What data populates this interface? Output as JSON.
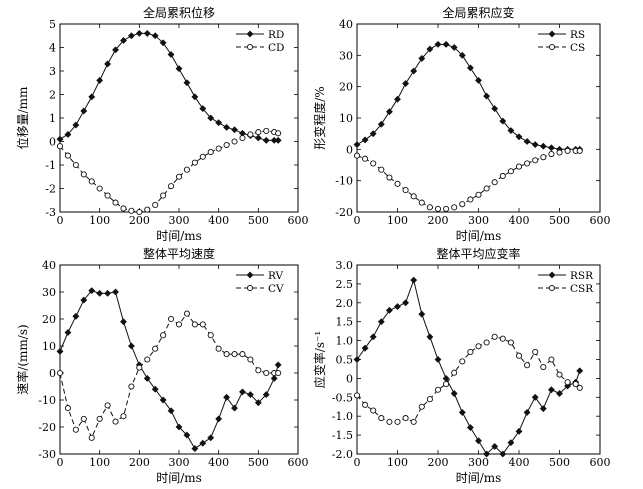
{
  "chart_data": [
    {
      "type": "line",
      "title": "全局累积位移",
      "xlabel": "时间/ms",
      "ylabel": "位移量/mm",
      "xlim": [
        0,
        600
      ],
      "ylim": [
        -3,
        5
      ],
      "xticks": [
        0,
        100,
        200,
        300,
        400,
        500,
        600
      ],
      "yticks": [
        -3,
        -2,
        -1,
        0,
        1,
        2,
        3,
        4,
        5
      ],
      "xtick_labels": [
        "0",
        "100",
        "200",
        "300",
        "400",
        "500",
        "600"
      ],
      "ytick_labels": [
        "-3",
        "-2",
        "-1",
        "0",
        "1",
        "2",
        "3",
        "4",
        "5"
      ],
      "grid": false,
      "legend": "top-right",
      "series": [
        {
          "name": "RD",
          "marker": "filled-diamond",
          "line": "solid",
          "x": [
            0,
            20,
            40,
            60,
            80,
            100,
            120,
            140,
            160,
            180,
            200,
            220,
            240,
            260,
            280,
            300,
            320,
            340,
            360,
            380,
            400,
            420,
            440,
            460,
            480,
            500,
            520,
            540,
            550
          ],
          "y": [
            0.1,
            0.3,
            0.7,
            1.3,
            1.9,
            2.6,
            3.3,
            3.9,
            4.3,
            4.5,
            4.6,
            4.6,
            4.5,
            4.2,
            3.7,
            3.1,
            2.5,
            1.9,
            1.4,
            1.0,
            0.8,
            0.6,
            0.5,
            0.35,
            0.25,
            0.15,
            0.05,
            0.05,
            0.05
          ]
        },
        {
          "name": "CD",
          "marker": "open-circle",
          "line": "dashed",
          "x": [
            0,
            20,
            40,
            60,
            80,
            100,
            120,
            140,
            160,
            180,
            200,
            220,
            240,
            260,
            280,
            300,
            320,
            340,
            360,
            380,
            400,
            420,
            440,
            460,
            480,
            500,
            520,
            540,
            550
          ],
          "y": [
            -0.2,
            -0.6,
            -1.0,
            -1.4,
            -1.7,
            -2.0,
            -2.3,
            -2.6,
            -2.85,
            -2.95,
            -3.0,
            -2.9,
            -2.7,
            -2.3,
            -1.9,
            -1.5,
            -1.2,
            -0.9,
            -0.65,
            -0.45,
            -0.3,
            -0.15,
            0.0,
            0.15,
            0.3,
            0.4,
            0.45,
            0.4,
            0.35
          ]
        }
      ]
    },
    {
      "type": "line",
      "title": "全局累积应变",
      "xlabel": "时间/ms",
      "ylabel": "形变程度/%",
      "xlim": [
        0,
        600
      ],
      "ylim": [
        -20,
        40
      ],
      "xticks": [
        0,
        100,
        200,
        300,
        400,
        500,
        600
      ],
      "yticks": [
        -20,
        -10,
        0,
        10,
        20,
        30,
        40
      ],
      "xtick_labels": [
        "0",
        "100",
        "200",
        "300",
        "400",
        "500",
        "600"
      ],
      "ytick_labels": [
        "-20",
        "-10",
        "0",
        "10",
        "20",
        "30",
        "40"
      ],
      "grid": false,
      "legend": "top-right",
      "series": [
        {
          "name": "RS",
          "marker": "filled-diamond",
          "line": "solid",
          "x": [
            0,
            20,
            40,
            60,
            80,
            100,
            120,
            140,
            160,
            180,
            200,
            220,
            240,
            260,
            280,
            300,
            320,
            340,
            360,
            380,
            400,
            420,
            440,
            460,
            480,
            500,
            520,
            540,
            550
          ],
          "y": [
            1.5,
            3,
            5,
            8,
            12,
            16,
            21,
            25,
            29,
            32,
            33.5,
            33.5,
            32.5,
            30,
            26,
            22,
            17,
            13,
            9,
            6,
            4,
            2.5,
            1.5,
            1,
            0.5,
            0,
            0,
            0,
            0
          ]
        },
        {
          "name": "CS",
          "marker": "open-circle",
          "line": "dashed",
          "x": [
            0,
            20,
            40,
            60,
            80,
            100,
            120,
            140,
            160,
            180,
            200,
            220,
            240,
            260,
            280,
            300,
            320,
            340,
            360,
            380,
            400,
            420,
            440,
            460,
            480,
            500,
            520,
            540,
            550
          ],
          "y": [
            -2,
            -3,
            -4.5,
            -6.5,
            -9,
            -11,
            -13,
            -15,
            -17,
            -18.5,
            -19,
            -19,
            -18.5,
            -17.5,
            -16,
            -14.5,
            -12.5,
            -10.5,
            -8.5,
            -7,
            -5.5,
            -4.5,
            -3.5,
            -2.5,
            -1.5,
            -1,
            -0.5,
            -0.5,
            -0.5
          ]
        }
      ]
    },
    {
      "type": "line",
      "title": "整体平均速度",
      "xlabel": "时间/ms",
      "ylabel": "速率/(mm/s)",
      "xlim": [
        0,
        600
      ],
      "ylim": [
        -30,
        40
      ],
      "xticks": [
        0,
        100,
        200,
        300,
        400,
        500,
        600
      ],
      "yticks": [
        -30,
        -20,
        -10,
        0,
        10,
        20,
        30,
        40
      ],
      "xtick_labels": [
        "0",
        "100",
        "200",
        "300",
        "400",
        "500",
        "600"
      ],
      "ytick_labels": [
        "-30",
        "-20",
        "-10",
        "0",
        "10",
        "20",
        "30",
        "40"
      ],
      "grid": false,
      "legend": "top-right",
      "series": [
        {
          "name": "RV",
          "marker": "filled-diamond",
          "line": "solid",
          "x": [
            0,
            20,
            40,
            60,
            80,
            100,
            120,
            140,
            160,
            180,
            200,
            220,
            240,
            260,
            280,
            300,
            320,
            340,
            360,
            380,
            400,
            420,
            440,
            460,
            480,
            500,
            520,
            540,
            550
          ],
          "y": [
            8,
            15,
            21,
            27,
            30.5,
            29.5,
            29.5,
            30,
            19,
            10,
            3,
            -2,
            -6,
            -10,
            -14,
            -20,
            -23,
            -28,
            -26,
            -24,
            -17,
            -9,
            -13,
            -7,
            -8,
            -11,
            -8,
            -2,
            3
          ]
        },
        {
          "name": "CV",
          "marker": "open-circle",
          "line": "dashed",
          "x": [
            0,
            20,
            40,
            60,
            80,
            100,
            120,
            140,
            160,
            180,
            200,
            220,
            240,
            260,
            280,
            300,
            320,
            340,
            360,
            380,
            400,
            420,
            440,
            460,
            480,
            500,
            520,
            540,
            550
          ],
          "y": [
            0,
            -13,
            -21,
            -17,
            -24,
            -17,
            -12,
            -18,
            -16,
            -5,
            2,
            5,
            9,
            14,
            20,
            18,
            22,
            18,
            18,
            14,
            9,
            7,
            7,
            7,
            5,
            1,
            0,
            0,
            0
          ]
        }
      ]
    },
    {
      "type": "line",
      "title": "整体平均应变率",
      "xlabel": "时间/ms",
      "ylabel": "应变率/s⁻¹",
      "xlim": [
        0,
        600
      ],
      "ylim": [
        -2,
        3
      ],
      "xticks": [
        0,
        100,
        200,
        300,
        400,
        500,
        600
      ],
      "yticks": [
        -2,
        -1.5,
        -1,
        -0.5,
        0,
        0.5,
        1,
        1.5,
        2,
        2.5,
        3
      ],
      "xtick_labels": [
        "0",
        "100",
        "200",
        "300",
        "400",
        "500",
        "600"
      ],
      "ytick_labels": [
        "-2.0",
        "-1.5",
        "-1.0",
        "-0.5",
        "0",
        "0.5",
        "1.0",
        "1.5",
        "2.0",
        "2.5",
        "3.0"
      ],
      "grid": false,
      "legend": "top-right",
      "series": [
        {
          "name": "RSR",
          "marker": "filled-diamond",
          "line": "solid",
          "x": [
            0,
            20,
            40,
            60,
            80,
            100,
            120,
            140,
            160,
            180,
            200,
            220,
            240,
            260,
            280,
            300,
            320,
            340,
            360,
            380,
            400,
            420,
            440,
            460,
            480,
            500,
            520,
            540,
            550
          ],
          "y": [
            0.5,
            0.8,
            1.1,
            1.5,
            1.8,
            1.9,
            2.0,
            2.6,
            1.7,
            1.1,
            0.5,
            0.0,
            -0.4,
            -0.9,
            -1.3,
            -1.65,
            -2.0,
            -1.8,
            -2.0,
            -1.7,
            -1.4,
            -0.9,
            -0.5,
            -0.8,
            -0.3,
            -0.4,
            -0.2,
            -0.1,
            0.2
          ]
        },
        {
          "name": "CSR",
          "marker": "open-circle",
          "line": "dashed",
          "x": [
            0,
            20,
            40,
            60,
            80,
            100,
            120,
            140,
            160,
            180,
            200,
            220,
            240,
            260,
            280,
            300,
            320,
            340,
            360,
            380,
            400,
            420,
            440,
            460,
            480,
            500,
            520,
            540,
            550
          ],
          "y": [
            -0.45,
            -0.7,
            -0.85,
            -1.05,
            -1.15,
            -1.15,
            -1.05,
            -1.15,
            -0.75,
            -0.55,
            -0.3,
            -0.15,
            0.15,
            0.45,
            0.7,
            0.85,
            0.95,
            1.1,
            1.05,
            0.95,
            0.6,
            0.35,
            0.7,
            0.3,
            0.5,
            0.1,
            -0.1,
            -0.15,
            -0.25
          ]
        }
      ]
    }
  ]
}
